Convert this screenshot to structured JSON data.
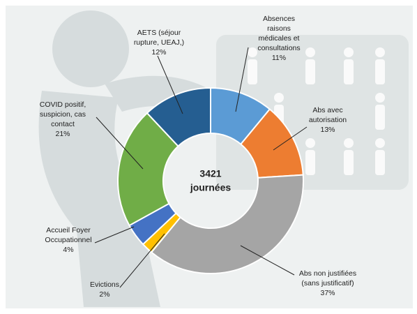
{
  "chart_data": {
    "type": "donut",
    "total": 3421,
    "total_label": "journées",
    "series": [
      {
        "name": [
          "Absences",
          "raisons",
          "médicales et",
          "consultations"
        ],
        "color": "#5b9bd5",
        "values": [
          11
        ],
        "value_labels": [
          "11%"
        ]
      },
      {
        "name": [
          "Abs avec",
          "autorisation"
        ],
        "color": "#ed7d31",
        "values": [
          13
        ],
        "value_labels": [
          "13%"
        ]
      },
      {
        "name": [
          "Abs non justifiées",
          "(sans justificatif)"
        ],
        "color": "#a5a5a5",
        "values": [
          37
        ],
        "value_labels": [
          "37%"
        ]
      },
      {
        "name": [
          "Evictions"
        ],
        "color": "#ffc000",
        "values": [
          2
        ],
        "value_labels": [
          "2%"
        ]
      },
      {
        "name": [
          "Accueil Foyer",
          "Occupationnel"
        ],
        "color": "#4472c4",
        "values": [
          4
        ],
        "value_labels": [
          "4%"
        ]
      },
      {
        "name": [
          "COVID positif,",
          "suspicion, cas",
          "contact"
        ],
        "color": "#70ad47",
        "values": [
          21
        ],
        "value_labels": [
          "21%"
        ]
      },
      {
        "name": [
          "AETS (séjour",
          "rupture, UEAJ,)"
        ],
        "color": "#255e91",
        "values": [
          12
        ],
        "value_labels": [
          "12%"
        ]
      }
    ]
  }
}
